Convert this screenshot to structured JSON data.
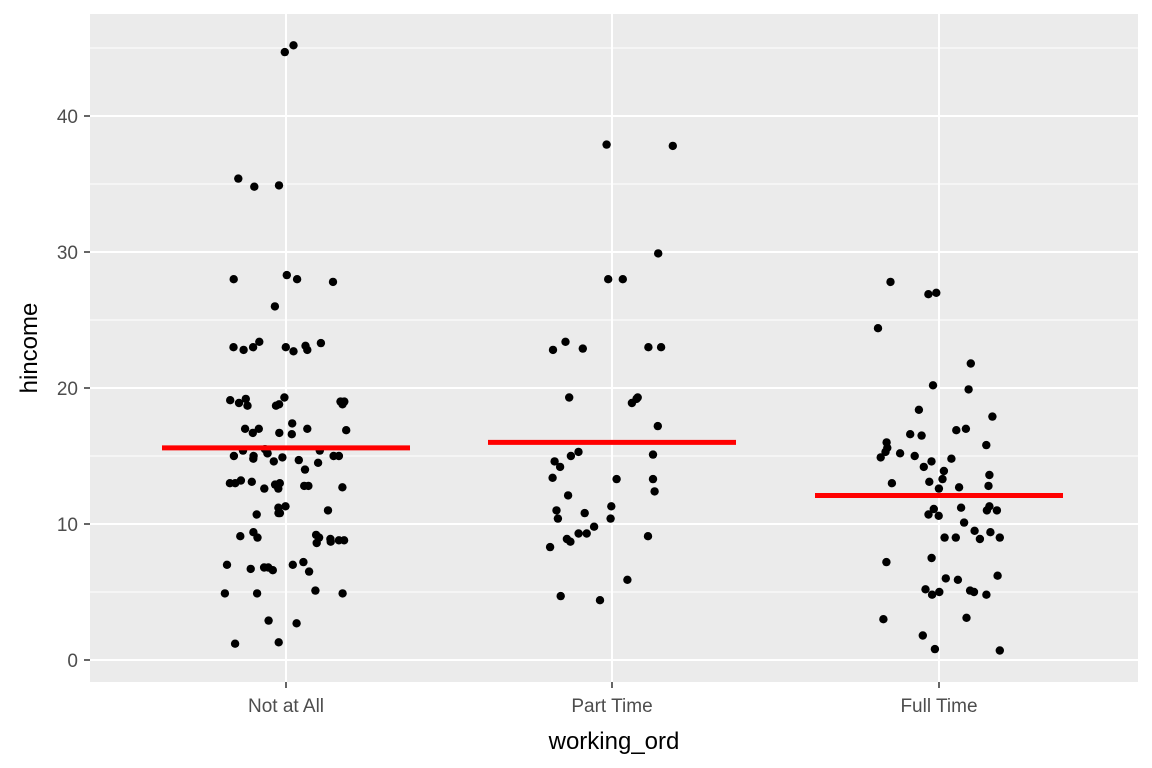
{
  "chart_data": {
    "type": "scatter",
    "subtype": "jitter-strip-with-mean-lines",
    "xlabel": "working_ord",
    "ylabel": "hincome",
    "categories": [
      "Not at All",
      "Part Time",
      "Full Time"
    ],
    "ylim": [
      -1.5,
      47.0
    ],
    "yticks": [
      0,
      10,
      20,
      30,
      40
    ],
    "ytick_labels": [
      "0",
      "10",
      "20",
      "30",
      "40"
    ],
    "grid": true,
    "legend": "none",
    "colors": {
      "points": "#000000",
      "mean_line": "#ff0000",
      "panel": "#ebebeb",
      "grid": "#ffffff"
    },
    "means": [
      15.6,
      16.0,
      12.1
    ],
    "series": [
      {
        "category": "Not at All",
        "values": [
          44.7,
          45.2,
          35.4,
          34.8,
          34.9,
          28.3,
          28.0,
          27.8,
          28.0,
          26.0,
          23.4,
          23.3,
          23.1,
          23.0,
          23.0,
          23.0,
          22.8,
          22.8,
          22.7,
          19.3,
          19.2,
          19.1,
          19.0,
          19.0,
          18.9,
          18.8,
          18.8,
          18.7,
          18.7,
          17.4,
          17.0,
          17.0,
          17.0,
          16.9,
          16.7,
          16.7,
          16.6,
          15.5,
          15.4,
          15.4,
          15.2,
          15.2,
          15.0,
          15.0,
          15.0,
          15.0,
          14.9,
          14.8,
          14.7,
          14.6,
          14.5,
          14.0,
          13.2,
          13.1,
          13.0,
          13.0,
          13.0,
          12.9,
          12.8,
          12.8,
          12.7,
          12.6,
          12.6,
          11.3,
          11.2,
          11.0,
          10.8,
          10.8,
          10.7,
          9.4,
          9.2,
          9.1,
          9.0,
          9.0,
          8.9,
          8.8,
          8.8,
          8.7,
          8.6,
          7.2,
          7.0,
          7.0,
          6.8,
          6.8,
          6.7,
          6.6,
          6.5,
          5.1,
          4.9,
          4.9,
          4.9,
          2.9,
          2.7,
          1.3,
          1.2
        ]
      },
      {
        "category": "Part Time",
        "values": [
          37.8,
          37.9,
          29.9,
          28.0,
          28.0,
          23.4,
          23.0,
          23.0,
          22.9,
          22.8,
          19.3,
          19.3,
          19.2,
          18.9,
          17.2,
          15.3,
          15.1,
          15.0,
          14.6,
          14.2,
          13.4,
          13.3,
          13.3,
          12.4,
          12.1,
          11.3,
          11.0,
          10.8,
          10.4,
          10.4,
          9.8,
          9.3,
          9.3,
          9.1,
          8.9,
          8.7,
          8.3,
          5.9,
          4.7,
          4.4
        ]
      },
      {
        "category": "Full Time",
        "values": [
          27.8,
          27.0,
          26.9,
          24.4,
          21.8,
          20.2,
          19.9,
          18.4,
          17.9,
          17.0,
          16.9,
          16.6,
          16.5,
          16.0,
          15.8,
          15.6,
          15.3,
          15.2,
          15.0,
          14.9,
          14.8,
          14.6,
          14.2,
          13.9,
          13.6,
          13.3,
          13.1,
          13.0,
          12.8,
          12.7,
          12.6,
          11.3,
          11.2,
          11.1,
          11.0,
          11.0,
          10.7,
          10.6,
          10.1,
          9.5,
          9.4,
          9.0,
          9.0,
          9.0,
          8.9,
          7.5,
          7.2,
          6.2,
          6.0,
          5.9,
          5.2,
          5.1,
          5.0,
          5.0,
          4.8,
          4.8,
          3.1,
          3.0,
          1.8,
          0.8,
          0.7
        ]
      }
    ]
  }
}
